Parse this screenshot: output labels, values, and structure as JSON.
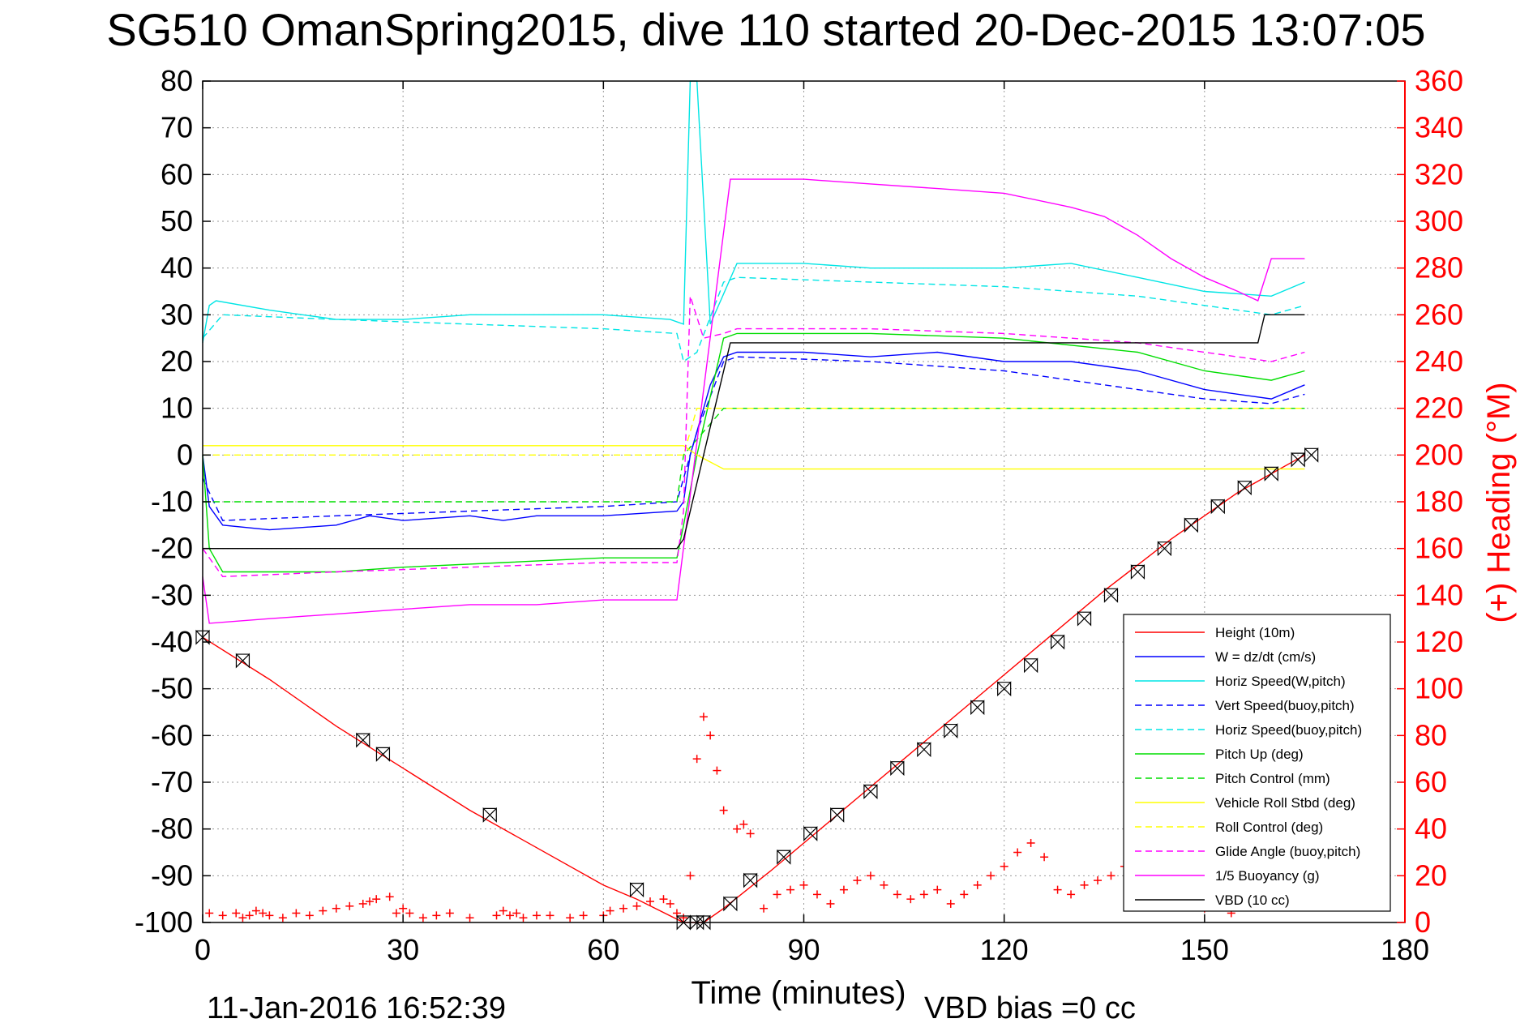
{
  "chart_data": {
    "type": "line",
    "title": "SG510 OmanSpring2015, dive 110 started 20-Dec-2015 13:07:05",
    "xlabel": "Time (minutes)",
    "ylabel_right": "(+) Heading (°M)",
    "xlim": [
      0,
      180
    ],
    "ylim": [
      -100,
      80
    ],
    "ylim_right": [
      0,
      360
    ],
    "x_ticks": [
      0,
      30,
      60,
      90,
      120,
      150,
      180
    ],
    "y_ticks": [
      -100,
      -90,
      -80,
      -70,
      -60,
      -50,
      -40,
      -30,
      -20,
      -10,
      0,
      10,
      20,
      30,
      40,
      50,
      60,
      70,
      80
    ],
    "y_ticks_right": [
      0,
      20,
      40,
      60,
      80,
      100,
      120,
      140,
      160,
      180,
      200,
      220,
      240,
      260,
      280,
      300,
      320,
      340,
      360
    ],
    "grid": true,
    "legend_position": "bottom-right",
    "footer_left": "11-Jan-2016 16:52:39",
    "footer_right": "VBD bias =0 cc",
    "colors": {
      "height": "#ff0000",
      "w": "#0000ff",
      "horiz_speed": "#00e5e5",
      "pitch": "#00dd00",
      "roll": "#ffff00",
      "glide": "#ff00ff",
      "buoyancy": "#ff00ff",
      "vbd": "#000000",
      "heading": "#ff0000"
    },
    "series": [
      {
        "name": "Height (10m)",
        "style": "solid",
        "color": "#ff0000",
        "x": [
          0,
          10,
          20,
          30,
          40,
          50,
          60,
          65,
          72,
          75,
          78,
          85,
          95,
          105,
          115,
          125,
          135,
          145,
          155,
          160,
          165
        ],
        "y": [
          -39,
          -48,
          -58,
          -67,
          -76,
          -84,
          -92,
          -95,
          -100,
          -100,
          -97,
          -89,
          -77,
          -65,
          -53,
          -41,
          -29,
          -18,
          -8,
          -4,
          0
        ]
      },
      {
        "name": "W = dz/dt (cm/s)",
        "style": "solid",
        "color": "#0000ff",
        "x": [
          0,
          1,
          3,
          10,
          20,
          25,
          30,
          40,
          45,
          50,
          60,
          71,
          72,
          73,
          76,
          78,
          80,
          90,
          100,
          110,
          120,
          130,
          140,
          150,
          160,
          165
        ],
        "y": [
          0,
          -11,
          -15,
          -16,
          -15,
          -13,
          -14,
          -13,
          -14,
          -13,
          -13,
          -12,
          -10,
          0,
          15,
          21,
          22,
          22,
          21,
          22,
          20,
          20,
          18,
          14,
          12,
          15
        ]
      },
      {
        "name": "Horiz Speed(W,pitch)",
        "style": "solid",
        "color": "#00e5e5",
        "x": [
          0,
          1,
          2,
          10,
          20,
          30,
          40,
          50,
          60,
          70,
          72,
          73,
          74,
          76,
          80,
          90,
          100,
          110,
          120,
          130,
          140,
          150,
          160,
          165
        ],
        "y": [
          24,
          32,
          33,
          31,
          29,
          29,
          30,
          30,
          30,
          29,
          28,
          80,
          80,
          28,
          41,
          41,
          40,
          40,
          40,
          41,
          38,
          35,
          34,
          37
        ]
      },
      {
        "name": "Vert Speed(buoy,pitch)",
        "style": "dashed",
        "color": "#0000ff",
        "x": [
          0,
          3,
          20,
          40,
          60,
          71,
          72,
          74,
          78,
          80,
          100,
          120,
          140,
          150,
          160,
          165
        ],
        "y": [
          -5,
          -14,
          -13,
          -12,
          -11,
          -10,
          -5,
          5,
          20,
          21,
          20,
          18,
          14,
          12,
          11,
          13
        ]
      },
      {
        "name": "Horiz Speed(buoy,pitch)",
        "style": "dashed",
        "color": "#00e5e5",
        "x": [
          0,
          3,
          20,
          40,
          60,
          71,
          72,
          74,
          78,
          80,
          100,
          120,
          140,
          150,
          160,
          165
        ],
        "y": [
          25,
          30,
          29,
          28,
          27,
          26,
          20,
          22,
          37,
          38,
          37,
          36,
          34,
          32,
          30,
          32
        ]
      },
      {
        "name": "Pitch Up (deg)",
        "style": "solid",
        "color": "#00dd00",
        "x": [
          0,
          1,
          3,
          20,
          30,
          45,
          60,
          71,
          72,
          74,
          78,
          80,
          100,
          120,
          140,
          150,
          160,
          165
        ],
        "y": [
          0,
          -20,
          -25,
          -25,
          -24,
          -23,
          -22,
          -22,
          -15,
          0,
          25,
          26,
          26,
          25,
          22,
          18,
          16,
          18
        ]
      },
      {
        "name": "Pitch Control (mm)",
        "style": "dashed",
        "color": "#00dd00",
        "x": [
          0,
          1,
          71,
          72,
          78,
          165
        ],
        "y": [
          -10,
          -10,
          -10,
          0,
          10,
          10
        ]
      },
      {
        "name": "Vehicle Roll Stbd (deg)",
        "style": "solid",
        "color": "#ffff00",
        "x": [
          0,
          2,
          10,
          20,
          30,
          40,
          50,
          60,
          70,
          72,
          74,
          78,
          80,
          90,
          100,
          110,
          120,
          130,
          140,
          150,
          160,
          165
        ],
        "y": [
          2,
          2,
          2,
          2,
          2,
          2,
          2,
          2,
          2,
          2,
          0,
          -3,
          -3,
          -3,
          -3,
          -3,
          -3,
          -3,
          -3,
          -3,
          -3,
          -3
        ]
      },
      {
        "name": "Roll Control (deg)",
        "style": "dashed",
        "color": "#ffff00",
        "x": [
          0,
          72,
          74,
          165
        ],
        "y": [
          0,
          0,
          10,
          10
        ]
      },
      {
        "name": "Glide Angle (buoy,pitch)",
        "style": "dashed",
        "color": "#ff00ff",
        "x": [
          0,
          3,
          20,
          40,
          60,
          71,
          72,
          73,
          75,
          78,
          80,
          100,
          120,
          140,
          150,
          160,
          165
        ],
        "y": [
          -20,
          -26,
          -25,
          -24,
          -23,
          -23,
          -12,
          34,
          25,
          26,
          27,
          27,
          26,
          24,
          22,
          20,
          22
        ]
      },
      {
        "name": "1/5 Buoyancy (g)",
        "style": "solid",
        "color": "#ff00ff",
        "x": [
          0,
          1,
          10,
          20,
          30,
          40,
          50,
          60,
          66,
          71,
          79,
          80,
          90,
          100,
          110,
          120,
          130,
          135,
          140,
          145,
          150,
          155,
          158,
          160,
          165
        ],
        "y": [
          -26,
          -36,
          -35,
          -34,
          -33,
          -32,
          -32,
          -31,
          -31,
          -31,
          59,
          59,
          59,
          58,
          57,
          56,
          53,
          51,
          47,
          42,
          38,
          35,
          33,
          42,
          42
        ]
      },
      {
        "name": "VBD (10 cc)",
        "style": "solid",
        "color": "#000000",
        "x": [
          0,
          71,
          72,
          79,
          80,
          158,
          159,
          165
        ],
        "y": [
          -20,
          -20,
          -18,
          24,
          24,
          24,
          30,
          30
        ]
      }
    ],
    "heading_series": {
      "name": "Heading",
      "marker": "+",
      "color": "#ff0000",
      "axis": "right",
      "x": [
        1,
        3,
        5,
        6,
        7,
        8,
        9,
        10,
        12,
        14,
        16,
        18,
        20,
        22,
        24,
        25,
        26,
        28,
        29,
        30,
        31,
        33,
        35,
        37,
        40,
        44,
        45,
        46,
        47,
        48,
        50,
        52,
        55,
        57,
        60,
        61,
        63,
        65,
        67,
        69,
        70,
        71,
        72,
        73,
        74,
        75,
        76,
        77,
        78,
        80,
        81,
        82,
        84,
        86,
        88,
        90,
        92,
        94,
        96,
        98,
        100,
        102,
        104,
        106,
        108,
        110,
        112,
        114,
        116,
        118,
        120,
        122,
        124,
        126,
        128,
        130,
        132,
        134,
        136,
        138,
        140,
        142,
        144,
        146,
        148,
        150,
        152,
        154,
        156,
        158,
        160,
        162,
        164,
        166
      ],
      "y": [
        4,
        3,
        4,
        2,
        3,
        5,
        4,
        3,
        2,
        4,
        3,
        5,
        6,
        7,
        8,
        9,
        10,
        11,
        4,
        6,
        4,
        2,
        3,
        4,
        2,
        3,
        5,
        3,
        4,
        2,
        3,
        3,
        2,
        3,
        3,
        5,
        6,
        7,
        9,
        10,
        8,
        4,
        2,
        20,
        70,
        88,
        80,
        65,
        48,
        40,
        42,
        38,
        6,
        12,
        14,
        16,
        12,
        8,
        14,
        18,
        20,
        16,
        12,
        10,
        12,
        14,
        8,
        12,
        16,
        20,
        24,
        30,
        34,
        28,
        14,
        12,
        16,
        18,
        20,
        24,
        30,
        36,
        28,
        10,
        8,
        6,
        12,
        4,
        10,
        8,
        14,
        14,
        20,
        18
      ]
    },
    "marker_points": {
      "name": "Height markers",
      "marker": "bowtie",
      "color": "#000000",
      "x": [
        0,
        6,
        24,
        27,
        43,
        65,
        72,
        74,
        75,
        79,
        82,
        87,
        91,
        95,
        100,
        104,
        108,
        112,
        116,
        120,
        124,
        128,
        132,
        136,
        140,
        144,
        148,
        152,
        156,
        160,
        164,
        166
      ],
      "y": [
        -39,
        -44,
        -61,
        -64,
        -77,
        -93,
        -100,
        -100,
        -100,
        -96,
        -91,
        -86,
        -81,
        -77,
        -72,
        -67,
        -63,
        -59,
        -54,
        -50,
        -45,
        -40,
        -35,
        -30,
        -25,
        -20,
        -15,
        -11,
        -7,
        -4,
        -1,
        0
      ]
    },
    "legend": [
      {
        "label": "Height (10m)",
        "color": "#ff0000",
        "style": "solid"
      },
      {
        "label": "W = dz/dt (cm/s)",
        "color": "#0000ff",
        "style": "solid"
      },
      {
        "label": "Horiz Speed(W,pitch)",
        "color": "#00e5e5",
        "style": "solid"
      },
      {
        "label": "Vert Speed(buoy,pitch)",
        "color": "#0000ff",
        "style": "dashed"
      },
      {
        "label": "Horiz Speed(buoy,pitch)",
        "color": "#00e5e5",
        "style": "dashed"
      },
      {
        "label": "Pitch Up (deg)",
        "color": "#00dd00",
        "style": "solid"
      },
      {
        "label": "Pitch Control (mm)",
        "color": "#00dd00",
        "style": "dashed"
      },
      {
        "label": "Vehicle Roll Stbd (deg)",
        "color": "#ffff00",
        "style": "solid"
      },
      {
        "label": "Roll Control (deg)",
        "color": "#ffff00",
        "style": "dashed"
      },
      {
        "label": "Glide Angle (buoy,pitch)",
        "color": "#ff00ff",
        "style": "dashed"
      },
      {
        "label": "1/5 Buoyancy (g)",
        "color": "#ff00ff",
        "style": "solid"
      },
      {
        "label": "VBD (10 cc)",
        "color": "#000000",
        "style": "solid"
      }
    ]
  }
}
